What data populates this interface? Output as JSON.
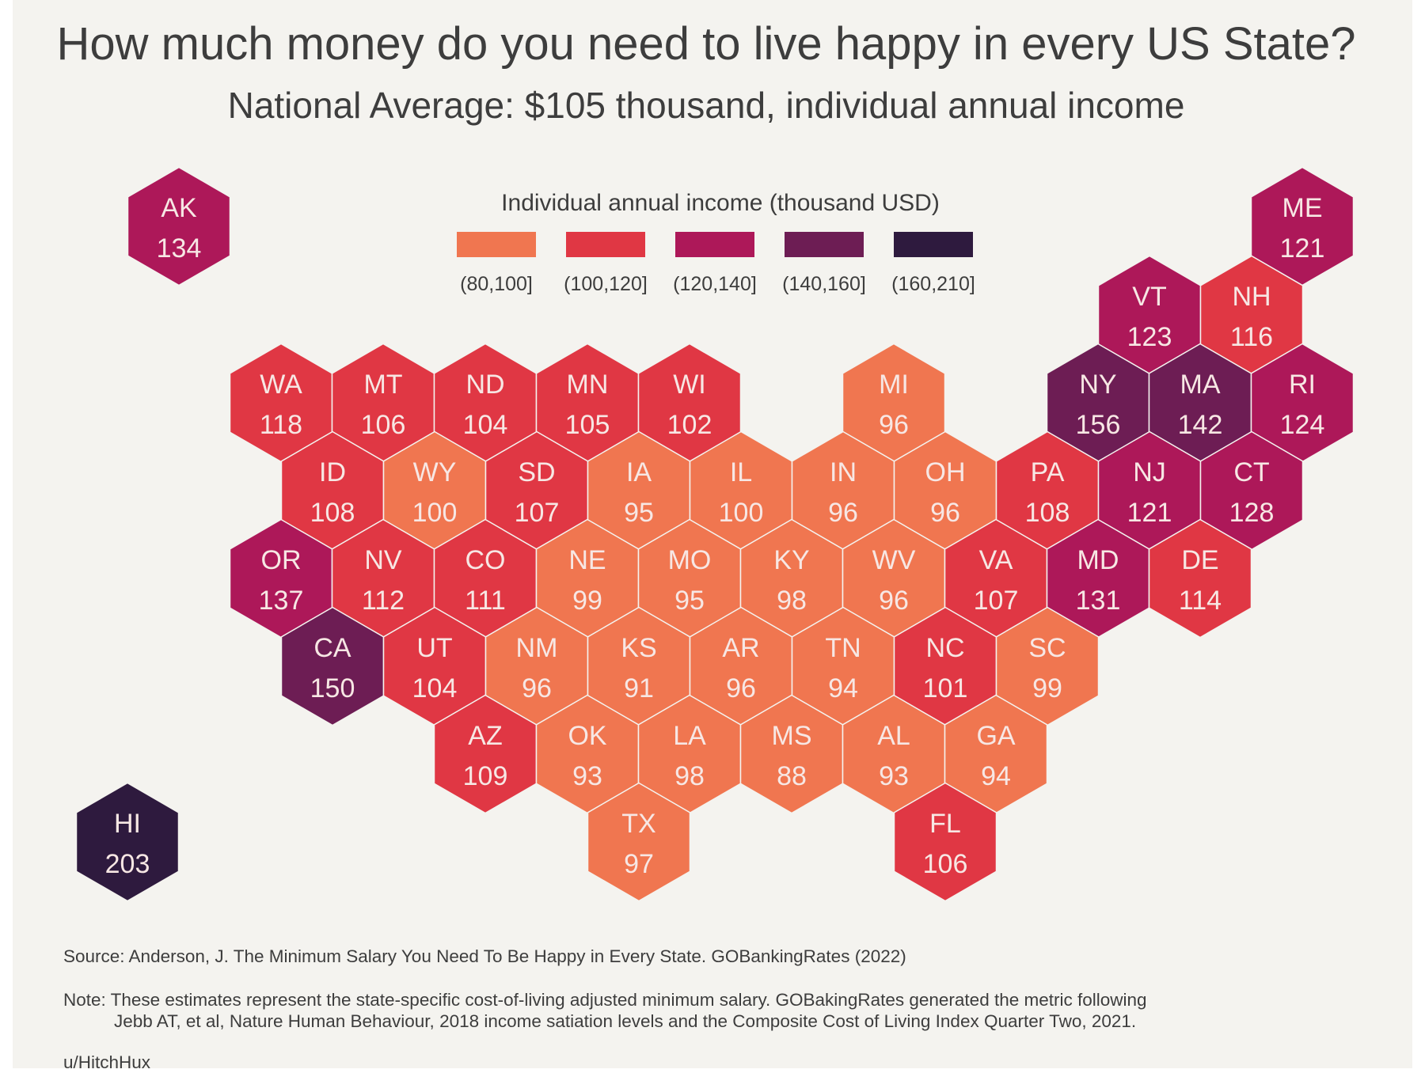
{
  "title": "How much money do you need to live happy in every US State?",
  "subtitle": "National Average: $105 thousand, individual annual income",
  "legend": {
    "title": "Individual annual income (thousand USD)",
    "bins": [
      {
        "label": "(80,100]",
        "color": "#f07650"
      },
      {
        "label": "(100,120]",
        "color": "#e03744"
      },
      {
        "label": "(120,140]",
        "color": "#ad1859"
      },
      {
        "label": "(140,160]",
        "color": "#6d1d54"
      },
      {
        "label": "(160,210]",
        "color": "#2e1a3e"
      }
    ]
  },
  "states": [
    {
      "abbr": "AK",
      "value": 134
    },
    {
      "abbr": "ME",
      "value": 121
    },
    {
      "abbr": "VT",
      "value": 123
    },
    {
      "abbr": "NH",
      "value": 116
    },
    {
      "abbr": "WA",
      "value": 118
    },
    {
      "abbr": "MT",
      "value": 106
    },
    {
      "abbr": "ND",
      "value": 104
    },
    {
      "abbr": "MN",
      "value": 105
    },
    {
      "abbr": "WI",
      "value": 102
    },
    {
      "abbr": "MI",
      "value": 96
    },
    {
      "abbr": "NY",
      "value": 156
    },
    {
      "abbr": "MA",
      "value": 142
    },
    {
      "abbr": "RI",
      "value": 124
    },
    {
      "abbr": "ID",
      "value": 108
    },
    {
      "abbr": "WY",
      "value": 100
    },
    {
      "abbr": "SD",
      "value": 107
    },
    {
      "abbr": "IA",
      "value": 95
    },
    {
      "abbr": "IL",
      "value": 100
    },
    {
      "abbr": "IN",
      "value": 96
    },
    {
      "abbr": "OH",
      "value": 96
    },
    {
      "abbr": "PA",
      "value": 108
    },
    {
      "abbr": "NJ",
      "value": 121
    },
    {
      "abbr": "CT",
      "value": 128
    },
    {
      "abbr": "OR",
      "value": 137
    },
    {
      "abbr": "NV",
      "value": 112
    },
    {
      "abbr": "CO",
      "value": 111
    },
    {
      "abbr": "NE",
      "value": 99
    },
    {
      "abbr": "MO",
      "value": 95
    },
    {
      "abbr": "KY",
      "value": 98
    },
    {
      "abbr": "WV",
      "value": 96
    },
    {
      "abbr": "VA",
      "value": 107
    },
    {
      "abbr": "MD",
      "value": 131
    },
    {
      "abbr": "DE",
      "value": 114
    },
    {
      "abbr": "CA",
      "value": 150
    },
    {
      "abbr": "UT",
      "value": 104
    },
    {
      "abbr": "NM",
      "value": 96
    },
    {
      "abbr": "KS",
      "value": 91
    },
    {
      "abbr": "AR",
      "value": 96
    },
    {
      "abbr": "TN",
      "value": 94
    },
    {
      "abbr": "NC",
      "value": 101
    },
    {
      "abbr": "SC",
      "value": 99
    },
    {
      "abbr": "AZ",
      "value": 109
    },
    {
      "abbr": "OK",
      "value": 93
    },
    {
      "abbr": "LA",
      "value": 98
    },
    {
      "abbr": "MS",
      "value": 88
    },
    {
      "abbr": "AL",
      "value": 93
    },
    {
      "abbr": "GA",
      "value": 94
    },
    {
      "abbr": "TX",
      "value": 97
    },
    {
      "abbr": "FL",
      "value": 106
    },
    {
      "abbr": "HI",
      "value": 203
    }
  ],
  "footer": {
    "source": "Source: Anderson, J. The Minimum Salary You Need To Be Happy in Every State. GOBankingRates (2022)",
    "note_line1": "Note: These estimates represent the state-specific cost-of-living adjusted minimum salary. GOBakingRates generated the metric following",
    "note_line2": "Jebb AT, et al, Nature Human Behaviour, 2018 income satiation levels and the Composite Cost of Living Index Quarter Two, 2021.",
    "author": "u/HitchHux"
  }
}
